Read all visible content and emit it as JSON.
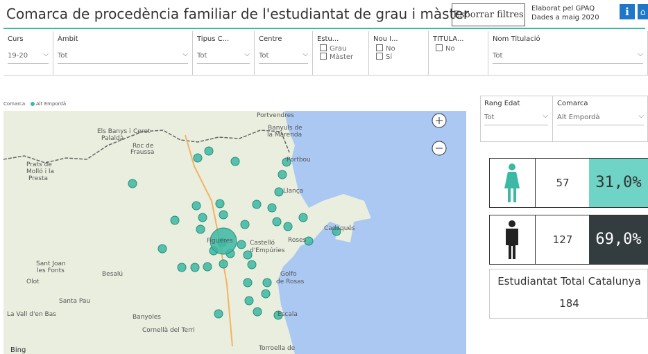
{
  "header": {
    "title": "Comarca de procedència familiar de l'estudiantat de grau i màster",
    "clear_button": "Esborrar filtres",
    "credit": [
      "Elaborat pel GPAQ",
      "Dades a maig 2020"
    ]
  },
  "filters": [
    {
      "label": "Curs",
      "value": "19-20"
    },
    {
      "label": "Àmbit",
      "value": "Tot"
    },
    {
      "label": "Tipus C...",
      "value": "Tot"
    },
    {
      "label": "Centre",
      "value": "Tot"
    },
    {
      "label": "Estu...",
      "options": [
        "Grau",
        "Màster"
      ]
    },
    {
      "label": "Nou I...",
      "options": [
        "No",
        "Sí"
      ]
    },
    {
      "label": "TITULA...",
      "options": [
        "No"
      ]
    },
    {
      "label": "Nom Titulació",
      "value": "Tot"
    }
  ],
  "map": {
    "legend_title": "Comarca",
    "legend_item": "Alt Empordà",
    "attribution": "Bing",
    "labels": [
      "Portvendres",
      "Banyuls de",
      "la Marenda",
      "Els Banys i",
      "Ceret",
      "Palaldà",
      "Roc de",
      "Fraussa",
      "Portbou",
      "Prats de",
      "Molló i la",
      "Presta",
      "Llança",
      "Cadaqués",
      "Figueres",
      "Castelló",
      "d'Empúries",
      "Roses",
      "Sant Joan",
      "les Fonts",
      "Besalú",
      "Olot",
      "Golfo",
      "de Rosas",
      "Santa Pau",
      "La Vall d'en Bas",
      "Banyoles",
      "Escala",
      "Cornellà del Terri",
      "Torroella de"
    ]
  },
  "side_filters": [
    {
      "label": "Rang Edat",
      "value": "Tot"
    },
    {
      "label": "Comarca",
      "value": "Alt Empordà"
    }
  ],
  "stats": {
    "female": {
      "count": 57,
      "percent": "31,0%"
    },
    "male": {
      "count": 127,
      "percent": "69,0%"
    },
    "total": {
      "label": "Estudiantat Total Catalunya",
      "count": 184
    }
  }
}
